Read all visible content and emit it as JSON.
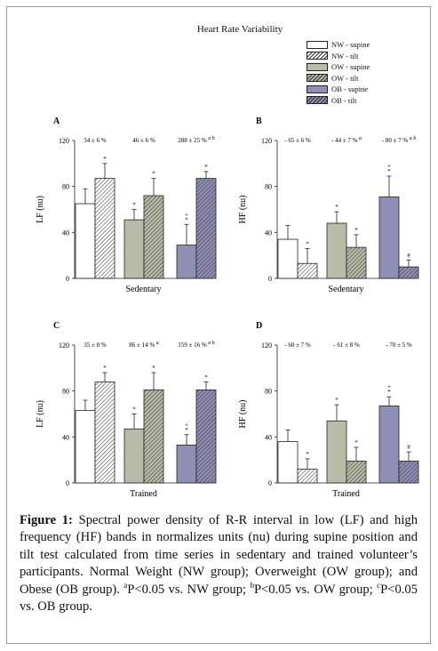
{
  "figure_title": "Heart Rate Variability",
  "legend": [
    {
      "label": "NW - supine",
      "fill": "#ffffff",
      "pattern": false
    },
    {
      "label": "NW - tilt",
      "fill": "#ffffff",
      "pattern": true
    },
    {
      "label": "OW - supine",
      "fill": "#b9bba9",
      "pattern": false
    },
    {
      "label": "OW - tilt",
      "fill": "#b9bba9",
      "pattern": true
    },
    {
      "label": "OB - supine",
      "fill": "#8f8fb6",
      "pattern": false
    },
    {
      "label": "OB - tilt",
      "fill": "#8f8fb6",
      "pattern": true
    }
  ],
  "caption": {
    "label": "Figure 1:",
    "text": " Spectral power density of R-R interval in low (LF) and high frequency (HF) bands in normalizes units (nu) during supine position and tilt test calculated from time series in sedentary and trained volunteer’s participants. Normal Weight (NW group); Overweight (OW group); and Obese (OB group). ",
    "sig_a_mark": "a",
    "sig_a_text": "P<0.05 vs. NW group; ",
    "sig_b_mark": "b",
    "sig_b_text": "P<0.05 vs. OW group; ",
    "sig_c_mark": "c",
    "sig_c_text": "P<0.05 vs. OB group."
  },
  "chart_data": [
    {
      "panel": "A",
      "type": "bar",
      "ylabel": "LF (nu)",
      "xlabel": "Sedentary",
      "ylim": [
        0,
        120
      ],
      "yticks": [
        0,
        40,
        80,
        120
      ],
      "groups": [
        "NW",
        "OW",
        "OB"
      ],
      "series": [
        {
          "name": "supine",
          "values": [
            65,
            51,
            29
          ],
          "errors": [
            13,
            9,
            18
          ]
        },
        {
          "name": "tilt",
          "values": [
            87,
            72,
            87
          ],
          "errors": [
            13,
            15,
            6
          ]
        }
      ],
      "group_annotations": [
        {
          "text": "34 ± 6 %",
          "sup": ""
        },
        {
          "text": "46 ± 6 %",
          "sup": ""
        },
        {
          "text": "288 ± 25 %",
          "sup": "a b"
        }
      ],
      "bar_marks": [
        [
          "",
          "*"
        ],
        [
          "*",
          "*"
        ],
        [
          "* +",
          "*"
        ]
      ]
    },
    {
      "panel": "B",
      "type": "bar",
      "ylabel": "HF (nu)",
      "xlabel": "Sedentary",
      "ylim": [
        0,
        120
      ],
      "yticks": [
        0,
        40,
        80,
        120
      ],
      "groups": [
        "NW",
        "OW",
        "OB"
      ],
      "series": [
        {
          "name": "supine",
          "values": [
            34,
            48,
            71
          ],
          "errors": [
            12,
            10,
            18
          ]
        },
        {
          "name": "tilt",
          "values": [
            13,
            27,
            10
          ],
          "errors": [
            13,
            11,
            6
          ]
        }
      ],
      "group_annotations": [
        {
          "text": "- 65 ± 6 %",
          "sup": ""
        },
        {
          "text": "- 44 ± 7 %",
          "sup": "a"
        },
        {
          "text": "- 80 ± 7 %",
          "sup": "a b"
        }
      ],
      "bar_marks": [
        [
          "",
          "*"
        ],
        [
          "*",
          "*"
        ],
        [
          "* +",
          "#"
        ]
      ]
    },
    {
      "panel": "C",
      "type": "bar",
      "ylabel": "LF (nu)",
      "xlabel": "Trained",
      "ylim": [
        0,
        120
      ],
      "yticks": [
        0,
        40,
        80,
        120
      ],
      "groups": [
        "NW",
        "OW",
        "OB"
      ],
      "series": [
        {
          "name": "supine",
          "values": [
            63,
            47,
            33
          ],
          "errors": [
            9,
            13,
            9
          ]
        },
        {
          "name": "tilt",
          "values": [
            88,
            81,
            81
          ],
          "errors": [
            8,
            15,
            7
          ]
        }
      ],
      "group_annotations": [
        {
          "text": "35 ± 8 %",
          "sup": ""
        },
        {
          "text": "86 ± 14 %",
          "sup": "a"
        },
        {
          "text": "159 ± 16 %",
          "sup": "a b"
        }
      ],
      "bar_marks": [
        [
          "",
          "*"
        ],
        [
          "*",
          "*"
        ],
        [
          "* +",
          "*"
        ]
      ]
    },
    {
      "panel": "D",
      "type": "bar",
      "ylabel": "HF (nu)",
      "xlabel": "Trained",
      "ylim": [
        0,
        120
      ],
      "yticks": [
        0,
        40,
        80,
        120
      ],
      "groups": [
        "NW",
        "OW",
        "OB"
      ],
      "series": [
        {
          "name": "supine",
          "values": [
            36,
            54,
            67
          ],
          "errors": [
            10,
            14,
            8
          ]
        },
        {
          "name": "tilt",
          "values": [
            12,
            19,
            19
          ],
          "errors": [
            9,
            12,
            8
          ]
        }
      ],
      "group_annotations": [
        {
          "text": "- 60 ± 7 %",
          "sup": ""
        },
        {
          "text": "- 61 ± 8 %",
          "sup": ""
        },
        {
          "text": "- 70 ± 5 %",
          "sup": ""
        }
      ],
      "bar_marks": [
        [
          "",
          "*"
        ],
        [
          "*",
          "*"
        ],
        [
          "* +",
          "#"
        ]
      ]
    }
  ]
}
